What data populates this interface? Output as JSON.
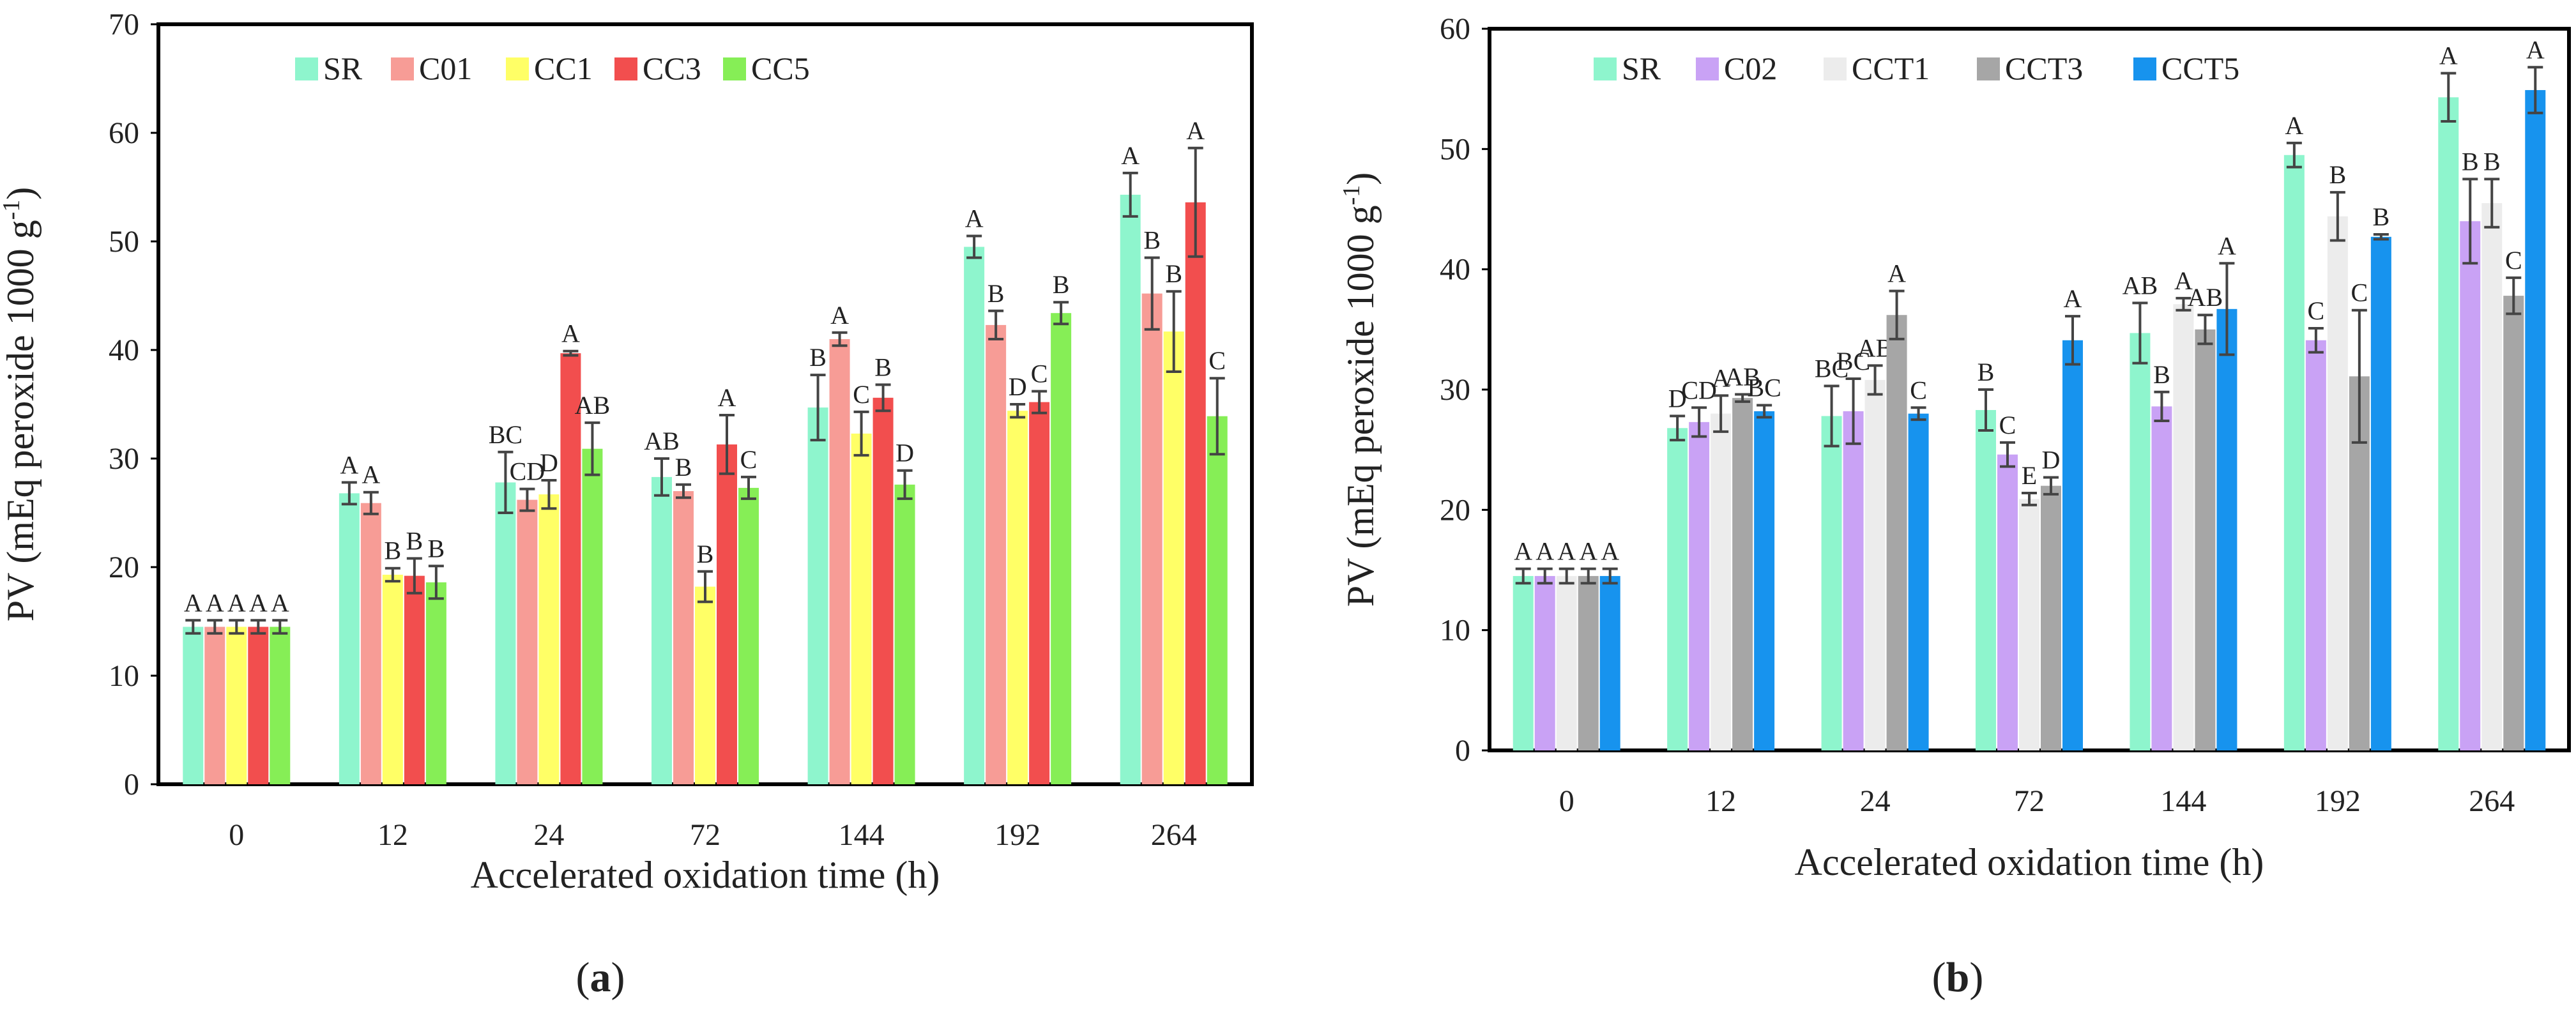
{
  "chart_data": [
    {
      "type": "bar",
      "panel_label": "(a)",
      "xlabel": "Accelerated oxidation time (h)",
      "ylabel": "PV (mEq peroxide 1000 g-1)",
      "ylim": [
        0,
        70
      ],
      "yticks": [
        "0",
        "10",
        "20",
        "30",
        "40",
        "50",
        "60",
        "70"
      ],
      "categories": [
        "0",
        "12",
        "24",
        "72",
        "144",
        "192",
        "264"
      ],
      "legend_position": "top",
      "series": [
        {
          "name": "SR",
          "color": "#8ef5cd",
          "values": [
            14.5,
            26.8,
            27.8,
            28.3,
            34.7,
            49.5,
            54.3
          ],
          "errors": [
            0.6,
            1.0,
            2.8,
            1.7,
            3.0,
            1.0,
            2.0
          ],
          "labels": [
            "A",
            "A",
            "BC",
            "AB",
            "B",
            "A",
            "A"
          ]
        },
        {
          "name": "C01",
          "color": "#f79c96",
          "values": [
            14.5,
            25.9,
            26.2,
            27.0,
            41.0,
            42.3,
            45.2
          ],
          "errors": [
            0.6,
            1.0,
            1.0,
            0.6,
            0.6,
            1.3,
            3.3
          ],
          "labels": [
            "A",
            "A",
            "CD",
            "B",
            "A",
            "B",
            "B"
          ]
        },
        {
          "name": "CC1",
          "color": "#ffff66",
          "values": [
            14.5,
            19.3,
            26.7,
            18.2,
            32.3,
            34.4,
            41.7
          ],
          "errors": [
            0.6,
            0.6,
            1.3,
            1.4,
            2.0,
            0.6,
            3.7
          ],
          "labels": [
            "A",
            "B",
            "D",
            "B",
            "C",
            "D",
            "B"
          ]
        },
        {
          "name": "CC3",
          "color": "#f24e4e",
          "values": [
            14.5,
            19.2,
            39.7,
            31.3,
            35.6,
            35.2,
            53.6
          ],
          "errors": [
            0.6,
            1.6,
            0.2,
            2.7,
            1.2,
            1.0,
            5.0
          ],
          "labels": [
            "A",
            "B",
            "A",
            "A",
            "B",
            "C",
            "A"
          ]
        },
        {
          "name": "CC5",
          "color": "#86ee56",
          "values": [
            14.5,
            18.6,
            30.9,
            27.3,
            27.6,
            43.4,
            33.9
          ],
          "errors": [
            0.6,
            1.5,
            2.4,
            1.0,
            1.3,
            1.0,
            3.5
          ],
          "labels": [
            "A",
            "B",
            "AB",
            "C",
            "D",
            "B",
            "C"
          ]
        }
      ]
    },
    {
      "type": "bar",
      "panel_label": "(b)",
      "xlabel": "Accelerated oxidation time (h)",
      "ylabel": "PV (mEq peroxide 1000 g-1)",
      "ylim": [
        0,
        60
      ],
      "yticks": [
        "0",
        "10",
        "20",
        "30",
        "40",
        "50",
        "60"
      ],
      "categories": [
        "0",
        "12",
        "24",
        "72",
        "144",
        "192",
        "264"
      ],
      "legend_position": "top",
      "series": [
        {
          "name": "SR",
          "color": "#8ef5cd",
          "values": [
            14.5,
            26.8,
            27.8,
            28.3,
            34.7,
            49.5,
            54.3
          ],
          "errors": [
            0.6,
            1.0,
            2.5,
            1.7,
            2.5,
            1.0,
            2.0
          ],
          "labels": [
            "A",
            "D",
            "BC",
            "B",
            "AB",
            "A",
            "A"
          ]
        },
        {
          "name": "C02",
          "color": "#c9a2f5",
          "values": [
            14.5,
            27.3,
            28.2,
            24.6,
            28.6,
            34.1,
            44.0
          ],
          "errors": [
            0.6,
            1.2,
            2.7,
            1.0,
            1.2,
            1.0,
            3.5
          ],
          "labels": [
            "A",
            "CD",
            "BC",
            "C",
            "B",
            "C",
            "B"
          ]
        },
        {
          "name": "CCT1",
          "color": "#ececec",
          "values": [
            14.5,
            28.0,
            30.8,
            20.9,
            37.1,
            44.4,
            45.5
          ],
          "errors": [
            0.6,
            1.5,
            1.2,
            0.5,
            0.5,
            2.0,
            2.0
          ],
          "labels": [
            "A",
            "A",
            "AB",
            "E",
            "A",
            "B",
            "B"
          ]
        },
        {
          "name": "CCT3",
          "color": "#a6a6a6",
          "values": [
            14.5,
            29.3,
            36.2,
            22.0,
            35.0,
            31.1,
            37.8
          ],
          "errors": [
            0.6,
            0.3,
            2.0,
            0.7,
            1.2,
            5.5,
            1.5
          ],
          "labels": [
            "A",
            "AB",
            "A",
            "D",
            "AB",
            "C",
            "C"
          ]
        },
        {
          "name": "CCT5",
          "color": "#1793ee",
          "values": [
            14.5,
            28.2,
            28.0,
            34.1,
            36.7,
            42.7,
            54.9
          ],
          "errors": [
            0.6,
            0.5,
            0.5,
            2.0,
            3.8,
            0.2,
            1.9
          ],
          "labels": [
            "A",
            "BC",
            "C",
            "A",
            "A",
            "B",
            "A"
          ]
        }
      ]
    }
  ]
}
